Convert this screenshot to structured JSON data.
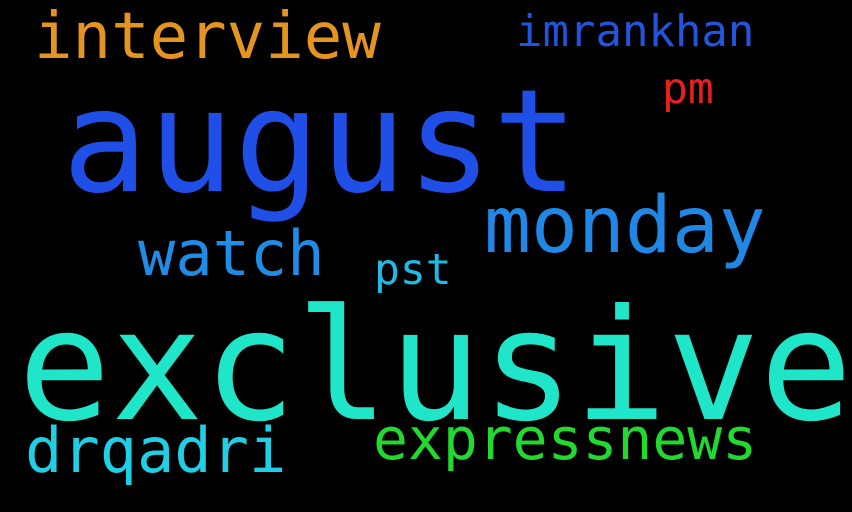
{
  "words": {
    "august": {
      "text": "august",
      "color": "#1f4fe6"
    },
    "exclusive": {
      "text": "exclusive",
      "color": "#1fe6c8"
    },
    "monday": {
      "text": "monday",
      "color": "#1f88e6"
    },
    "interview": {
      "text": "interview",
      "color": "#e69420"
    },
    "imrankhan": {
      "text": "imrankhan",
      "color": "#2155e0"
    },
    "watch": {
      "text": "watch",
      "color": "#1f8ce6"
    },
    "expressnews": {
      "text": "expressnews",
      "color": "#22d930"
    },
    "drqadri": {
      "text": "drqadri",
      "color": "#1fcfe6"
    },
    "pst": {
      "text": "pst",
      "color": "#1fbbe6"
    },
    "pm": {
      "text": "pm",
      "color": "#e61f1f"
    }
  }
}
